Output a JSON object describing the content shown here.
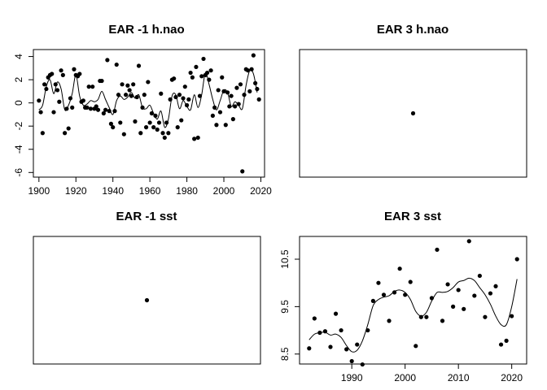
{
  "chart_data": [
    {
      "type": "scatter",
      "title": "EAR -1 h.nao",
      "xlim": [
        1897,
        2022
      ],
      "ylim": [
        -6.4,
        4.6
      ],
      "xticks": [
        1900,
        1920,
        1940,
        1960,
        1980,
        2000,
        2020
      ],
      "yticks": [
        -6,
        -4,
        -2,
        0,
        2,
        4
      ],
      "show_x_axis": true,
      "show_y_axis": true,
      "points": [
        [
          1900,
          0.2
        ],
        [
          1901,
          -0.8
        ],
        [
          1902,
          -2.6
        ],
        [
          1903,
          1.6
        ],
        [
          1904,
          1.2
        ],
        [
          1905,
          2.2
        ],
        [
          1906,
          2.4
        ],
        [
          1907,
          2.5
        ],
        [
          1908,
          -0.8
        ],
        [
          1909,
          1.6
        ],
        [
          1910,
          1.1
        ],
        [
          1911,
          0.1
        ],
        [
          1912,
          2.8
        ],
        [
          1913,
          2.4
        ],
        [
          1914,
          -2.6
        ],
        [
          1915,
          -0.5
        ],
        [
          1916,
          -2.2
        ],
        [
          1917,
          0.4
        ],
        [
          1918,
          -0.4
        ],
        [
          1919,
          2.9
        ],
        [
          1920,
          2.4
        ],
        [
          1921,
          2.3
        ],
        [
          1922,
          2.5
        ],
        [
          1923,
          0.1
        ],
        [
          1924,
          0.2
        ],
        [
          1925,
          -0.4
        ],
        [
          1926,
          -0.4
        ],
        [
          1927,
          1.4
        ],
        [
          1928,
          -0.5
        ],
        [
          1929,
          1.4
        ],
        [
          1930,
          -0.5
        ],
        [
          1931,
          -0.3
        ],
        [
          1932,
          -0.6
        ],
        [
          1933,
          1.9
        ],
        [
          1934,
          1.9
        ],
        [
          1935,
          -0.9
        ],
        [
          1936,
          -0.6
        ],
        [
          1937,
          3.7
        ],
        [
          1938,
          -0.7
        ],
        [
          1939,
          -1.8
        ],
        [
          1940,
          -2.1
        ],
        [
          1941,
          -0.7
        ],
        [
          1942,
          3.3
        ],
        [
          1943,
          0.7
        ],
        [
          1944,
          -1.7
        ],
        [
          1945,
          1.6
        ],
        [
          1946,
          -2.7
        ],
        [
          1947,
          0.7
        ],
        [
          1948,
          1.5
        ],
        [
          1949,
          1.1
        ],
        [
          1950,
          0.6
        ],
        [
          1951,
          1.6
        ],
        [
          1952,
          -1.6
        ],
        [
          1953,
          0.5
        ],
        [
          1954,
          3.2
        ],
        [
          1955,
          -2.6
        ],
        [
          1956,
          -0.4
        ],
        [
          1957,
          0.7
        ],
        [
          1958,
          -2.1
        ],
        [
          1959,
          1.8
        ],
        [
          1960,
          -1.7
        ],
        [
          1961,
          -0.9
        ],
        [
          1962,
          -2.1
        ],
        [
          1963,
          -1.1
        ],
        [
          1964,
          -2.3
        ],
        [
          1965,
          -1.7
        ],
        [
          1966,
          0.8
        ],
        [
          1967,
          -2.6
        ],
        [
          1968,
          -3.0
        ],
        [
          1969,
          -1.7
        ],
        [
          1970,
          -2.6
        ],
        [
          1971,
          0.3
        ],
        [
          1972,
          2.0
        ],
        [
          1973,
          2.1
        ],
        [
          1974,
          0.5
        ],
        [
          1975,
          -2.1
        ],
        [
          1976,
          0.7
        ],
        [
          1977,
          -1.5
        ],
        [
          1978,
          0.4
        ],
        [
          1979,
          1.4
        ],
        [
          1980,
          -0.2
        ],
        [
          1981,
          0.3
        ],
        [
          1982,
          2.6
        ],
        [
          1983,
          2.2
        ],
        [
          1984,
          -3.1
        ],
        [
          1985,
          3.1
        ],
        [
          1986,
          -3.0
        ],
        [
          1987,
          0.6
        ],
        [
          1988,
          2.3
        ],
        [
          1989,
          3.8
        ],
        [
          1990,
          2.4
        ],
        [
          1991,
          2.6
        ],
        [
          1992,
          2.0
        ],
        [
          1993,
          2.8
        ],
        [
          1994,
          -1.1
        ],
        [
          1995,
          -0.4
        ],
        [
          1996,
          -1.9
        ],
        [
          1997,
          1.1
        ],
        [
          1998,
          -0.8
        ],
        [
          1999,
          2.2
        ],
        [
          2000,
          1.0
        ],
        [
          2001,
          -1.9
        ],
        [
          2002,
          0.9
        ],
        [
          2003,
          -0.3
        ],
        [
          2004,
          0.6
        ],
        [
          2005,
          -1.4
        ],
        [
          2006,
          -0.3
        ],
        [
          2007,
          1.3
        ],
        [
          2008,
          -0.1
        ],
        [
          2009,
          1.6
        ],
        [
          2010,
          -5.9
        ],
        [
          2011,
          0.7
        ],
        [
          2012,
          2.9
        ],
        [
          2013,
          2.8
        ],
        [
          2014,
          1.0
        ],
        [
          2015,
          2.9
        ],
        [
          2016,
          4.1
        ],
        [
          2017,
          1.7
        ],
        [
          2018,
          1.2
        ],
        [
          2019,
          0.3
        ]
      ],
      "curve": [
        [
          1900,
          -0.6
        ],
        [
          1902,
          -0.2
        ],
        [
          1904,
          1.4
        ],
        [
          1906,
          2.0
        ],
        [
          1908,
          0.8
        ],
        [
          1910,
          1.8
        ],
        [
          1912,
          1.2
        ],
        [
          1914,
          -0.6
        ],
        [
          1916,
          -0.2
        ],
        [
          1918,
          0.8
        ],
        [
          1920,
          2.4
        ],
        [
          1922,
          0.6
        ],
        [
          1924,
          -0.2
        ],
        [
          1926,
          -0.1
        ],
        [
          1928,
          0.2
        ],
        [
          1930,
          0.1
        ],
        [
          1932,
          0.3
        ],
        [
          1934,
          1.0
        ],
        [
          1936,
          0.3
        ],
        [
          1938,
          -0.4
        ],
        [
          1940,
          -1.0
        ],
        [
          1942,
          0.2
        ],
        [
          1944,
          0.6
        ],
        [
          1946,
          0.3
        ],
        [
          1948,
          0.5
        ],
        [
          1950,
          0.9
        ],
        [
          1952,
          0.4
        ],
        [
          1954,
          0.7
        ],
        [
          1956,
          -0.4
        ],
        [
          1958,
          -0.5
        ],
        [
          1960,
          -0.2
        ],
        [
          1962,
          -0.9
        ],
        [
          1964,
          -1.4
        ],
        [
          1966,
          -0.7
        ],
        [
          1968,
          -2.1
        ],
        [
          1970,
          -1.4
        ],
        [
          1972,
          0.6
        ],
        [
          1974,
          0.7
        ],
        [
          1976,
          -0.5
        ],
        [
          1978,
          0.2
        ],
        [
          1980,
          -0.3
        ],
        [
          1982,
          -0.6
        ],
        [
          1984,
          0.7
        ],
        [
          1986,
          -0.4
        ],
        [
          1988,
          0.7
        ],
        [
          1990,
          2.6
        ],
        [
          1992,
          1.6
        ],
        [
          1994,
          0.3
        ],
        [
          1996,
          -0.6
        ],
        [
          1998,
          0.2
        ],
        [
          2000,
          1.1
        ],
        [
          2002,
          0.9
        ],
        [
          2004,
          -0.3
        ],
        [
          2006,
          0.1
        ],
        [
          2008,
          -0.2
        ],
        [
          2010,
          -0.5
        ],
        [
          2012,
          1.5
        ],
        [
          2014,
          2.8
        ],
        [
          2016,
          2.5
        ],
        [
          2018,
          0.9
        ]
      ]
    },
    {
      "type": "scatter",
      "title": "EAR 3 h.nao",
      "xlim": [
        0,
        1
      ],
      "ylim": [
        0,
        1
      ],
      "show_x_axis": false,
      "show_y_axis": false,
      "points": [
        [
          0.5,
          0.5
        ]
      ],
      "curve": []
    },
    {
      "type": "scatter",
      "title": "EAR -1 sst",
      "xlim": [
        0,
        1
      ],
      "ylim": [
        0,
        1
      ],
      "show_x_axis": false,
      "show_y_axis": false,
      "points": [
        [
          0.5,
          0.5
        ]
      ],
      "curve": []
    },
    {
      "type": "scatter",
      "title": "EAR 3 sst",
      "xlim": [
        1980.2,
        2022.8
      ],
      "ylim": [
        8.29,
        10.98
      ],
      "xticks": [
        1990,
        2000,
        2010,
        2020
      ],
      "yticks": [
        8.5,
        9.5,
        10.5
      ],
      "show_x_axis": true,
      "show_y_axis": true,
      "points": [
        [
          1982,
          8.62
        ],
        [
          1983,
          9.25
        ],
        [
          1984,
          8.95
        ],
        [
          1985,
          8.98
        ],
        [
          1986,
          8.65
        ],
        [
          1987,
          9.35
        ],
        [
          1988,
          9.0
        ],
        [
          1989,
          8.6
        ],
        [
          1990,
          8.35
        ],
        [
          1991,
          8.7
        ],
        [
          1992,
          8.28
        ],
        [
          1993,
          9.0
        ],
        [
          1994,
          9.62
        ],
        [
          1995,
          10.0
        ],
        [
          1996,
          9.75
        ],
        [
          1997,
          9.2
        ],
        [
          1998,
          9.8
        ],
        [
          1999,
          10.3
        ],
        [
          2000,
          9.75
        ],
        [
          2001,
          10.02
        ],
        [
          2002,
          8.67
        ],
        [
          2003,
          9.28
        ],
        [
          2004,
          9.28
        ],
        [
          2005,
          9.68
        ],
        [
          2006,
          10.7
        ],
        [
          2007,
          9.2
        ],
        [
          2008,
          9.97
        ],
        [
          2009,
          9.5
        ],
        [
          2010,
          9.85
        ],
        [
          2011,
          9.45
        ],
        [
          2012,
          10.88
        ],
        [
          2013,
          9.73
        ],
        [
          2014,
          10.15
        ],
        [
          2015,
          9.28
        ],
        [
          2016,
          9.78
        ],
        [
          2017,
          9.93
        ],
        [
          2018,
          8.7
        ],
        [
          2019,
          8.78
        ],
        [
          2020,
          9.3
        ],
        [
          2021,
          10.5
        ]
      ],
      "curve": [
        [
          1982,
          8.8
        ],
        [
          1983,
          8.92
        ],
        [
          1984,
          8.95
        ],
        [
          1985,
          8.96
        ],
        [
          1986,
          8.9
        ],
        [
          1987,
          8.92
        ],
        [
          1988,
          8.85
        ],
        [
          1989,
          8.68
        ],
        [
          1990,
          8.55
        ],
        [
          1991,
          8.58
        ],
        [
          1992,
          8.78
        ],
        [
          1993,
          9.12
        ],
        [
          1994,
          9.52
        ],
        [
          1995,
          9.65
        ],
        [
          1996,
          9.7
        ],
        [
          1997,
          9.73
        ],
        [
          1998,
          9.82
        ],
        [
          1999,
          9.85
        ],
        [
          2000,
          9.8
        ],
        [
          2001,
          9.65
        ],
        [
          2002,
          9.4
        ],
        [
          2003,
          9.3
        ],
        [
          2004,
          9.38
        ],
        [
          2005,
          9.62
        ],
        [
          2006,
          9.8
        ],
        [
          2007,
          9.8
        ],
        [
          2008,
          9.82
        ],
        [
          2009,
          9.9
        ],
        [
          2010,
          10.02
        ],
        [
          2011,
          10.05
        ],
        [
          2012,
          10.1
        ],
        [
          2013,
          10.05
        ],
        [
          2014,
          9.9
        ],
        [
          2015,
          9.75
        ],
        [
          2016,
          9.55
        ],
        [
          2017,
          9.3
        ],
        [
          2018,
          9.12
        ],
        [
          2019,
          9.12
        ],
        [
          2020,
          9.5
        ],
        [
          2021,
          10.08
        ]
      ]
    }
  ]
}
